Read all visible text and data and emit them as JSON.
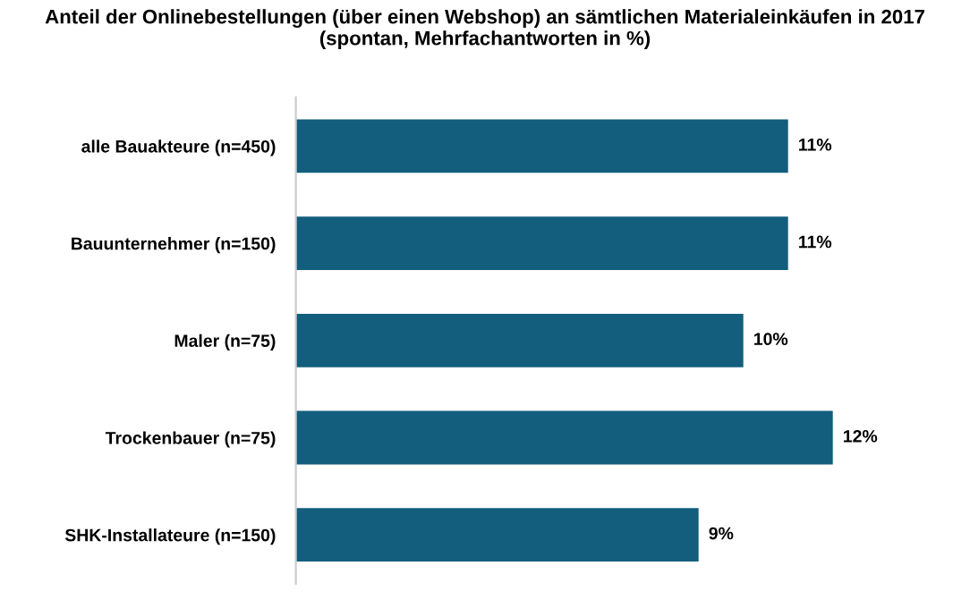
{
  "chart_data": {
    "type": "bar",
    "orientation": "horizontal",
    "title": "Anteil der Onlinebestellungen (über einen Webshop) an sämtlichen Materialeinkäufen in 2017\n(spontan, Mehrfachantworten in %)",
    "categories": [
      "alle Bauakteure (n=450)",
      "Bauunternehmer (n=150)",
      "Maler (n=75)",
      "Trockenbauer (n=75)",
      "SHK-Installateure (n=150)"
    ],
    "values": [
      11,
      11,
      10,
      12,
      9
    ],
    "value_labels": [
      "11%",
      "11%",
      "10%",
      "12%",
      "9%"
    ],
    "color": "#125e7c",
    "grid": false
  }
}
